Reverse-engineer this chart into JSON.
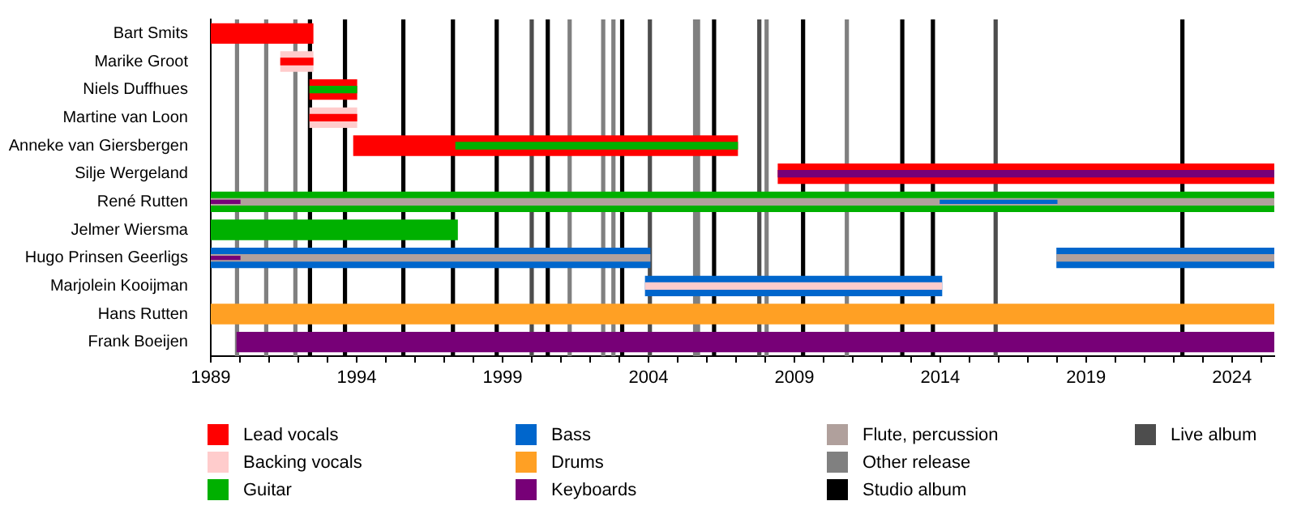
{
  "chart_data": {
    "type": "bar",
    "orientation": "horizontal",
    "categories": [
      "Bart Smits",
      "Marike Groot",
      "Niels Duffhues",
      "Martine van Loon",
      "Anneke van Giersbergen",
      "Silje Wergeland",
      "René Rutten",
      "Jelmer Wiersma",
      "Hugo Prinsen Geerligs",
      "Marjolein Kooijman",
      "Hans Rutten",
      "Frank Boeijen"
    ],
    "series": [
      {
        "name": "Lead vocals",
        "color": "#ff0000",
        "base": [
          1989,
          null,
          1992.4,
          null,
          1993.9,
          2008.45,
          null,
          null,
          null,
          null,
          null,
          null
        ],
        "values": [
          3.5,
          null,
          1.6,
          null,
          13.15,
          17.0,
          null,
          null,
          null,
          null,
          null,
          null
        ]
      },
      {
        "name": "Backing vocals",
        "color": "#ffcccc",
        "base": [
          null,
          1991.4,
          null,
          1992.4,
          null,
          null,
          null,
          null,
          null,
          null,
          null,
          null
        ],
        "values": [
          null,
          1.1,
          null,
          1.6,
          null,
          null,
          null,
          null,
          null,
          null,
          null,
          null
        ]
      },
      {
        "name": "Guitar",
        "color": "#00b000",
        "base": [
          null,
          null,
          null,
          null,
          null,
          null,
          1989,
          1989,
          null,
          null,
          null,
          null
        ],
        "values": [
          null,
          null,
          null,
          null,
          null,
          null,
          36.45,
          8.45,
          null,
          null,
          null,
          null
        ]
      },
      {
        "name": "Bass",
        "color": "#0066cc",
        "base": [
          null,
          null,
          null,
          null,
          null,
          null,
          null,
          null,
          1989,
          2003.9,
          null,
          null
        ],
        "values": [
          null,
          null,
          null,
          null,
          null,
          null,
          null,
          null,
          15.05,
          10.15,
          null,
          null
        ]
      },
      {
        "color": "#0066cc",
        "base": [
          null,
          null,
          null,
          null,
          null,
          null,
          null,
          null,
          2018.0,
          null,
          null,
          null
        ],
        "values": [
          null,
          null,
          null,
          null,
          null,
          null,
          null,
          null,
          7.45,
          null,
          null,
          null
        ]
      },
      {
        "name": "Drums",
        "color": "#ffa024",
        "base": [
          null,
          null,
          null,
          null,
          null,
          null,
          null,
          null,
          null,
          null,
          1989,
          null
        ],
        "values": [
          null,
          null,
          null,
          null,
          null,
          null,
          null,
          null,
          null,
          null,
          36.45,
          null
        ]
      },
      {
        "name": "Keyboards",
        "color": "#770077",
        "base": [
          null,
          null,
          null,
          null,
          null,
          null,
          null,
          null,
          null,
          null,
          null,
          1989.9
        ],
        "values": [
          null,
          null,
          null,
          null,
          null,
          null,
          null,
          null,
          null,
          null,
          null,
          35.55
        ]
      },
      {
        "color": "#ff0000",
        "base": [
          null,
          1991.4,
          null,
          1992.4,
          null,
          null,
          null,
          null,
          null,
          null,
          null,
          null
        ],
        "values": [
          null,
          1.1,
          null,
          1.6,
          null,
          null,
          null,
          null,
          null,
          null,
          null,
          null
        ]
      },
      {
        "color": "#00b000",
        "base": [
          null,
          null,
          1992.4,
          null,
          1997.4,
          null,
          null,
          null,
          null,
          null,
          null,
          null
        ],
        "values": [
          null,
          null,
          1.6,
          null,
          9.65,
          null,
          null,
          null,
          null,
          null,
          null,
          null
        ]
      },
      {
        "color": "#770077",
        "base": [
          null,
          null,
          null,
          null,
          null,
          2008.45,
          null,
          null,
          null,
          null,
          null,
          null
        ],
        "values": [
          null,
          null,
          null,
          null,
          null,
          17.0,
          null,
          null,
          null,
          null,
          null,
          null
        ]
      },
      {
        "name": "Flute, percussion",
        "color": "#b0a09c",
        "base": [
          null,
          null,
          null,
          null,
          null,
          null,
          1989,
          null,
          1989,
          null,
          null,
          null
        ],
        "values": [
          null,
          null,
          null,
          null,
          null,
          null,
          36.45,
          null,
          15.05,
          null,
          null,
          null
        ]
      },
      {
        "color": "#b0a09c",
        "base": [
          null,
          null,
          null,
          null,
          null,
          null,
          null,
          null,
          2018.0,
          null,
          null,
          null
        ],
        "values": [
          null,
          null,
          null,
          null,
          null,
          null,
          null,
          null,
          7.45,
          null,
          null,
          null
        ]
      },
      {
        "color": "#ffcccc",
        "base": [
          null,
          null,
          null,
          null,
          null,
          null,
          null,
          null,
          null,
          2003.9,
          null,
          null
        ],
        "values": [
          null,
          null,
          null,
          null,
          null,
          null,
          null,
          null,
          null,
          10.15,
          null,
          null
        ]
      },
      {
        "color": "#770077",
        "base": [
          null,
          null,
          null,
          null,
          null,
          null,
          1989,
          null,
          1989,
          null,
          null,
          null
        ],
        "values": [
          null,
          null,
          null,
          null,
          null,
          null,
          1.0,
          null,
          1.0,
          null,
          null,
          null
        ]
      },
      {
        "color": "#0066cc",
        "base": [
          null,
          null,
          null,
          null,
          null,
          null,
          2014.0,
          null,
          null,
          null,
          null,
          null
        ],
        "values": [
          null,
          null,
          null,
          null,
          null,
          null,
          4.0,
          null,
          null,
          null,
          null,
          null
        ]
      }
    ],
    "xlim": [
      1989,
      2025.45
    ],
    "xticks": [
      1989,
      {
        "value": 1990,
        "label": null
      },
      {
        "value": 1991,
        "label": null
      },
      {
        "value": 1992,
        "label": null
      },
      {
        "value": 1993,
        "label": null
      },
      1994,
      {
        "value": 1995,
        "label": null
      },
      {
        "value": 1996,
        "label": null
      },
      {
        "value": 1997,
        "label": null
      },
      {
        "value": 1998,
        "label": null
      },
      1999,
      {
        "value": 2000,
        "label": null
      },
      {
        "value": 2001,
        "label": null
      },
      {
        "value": 2002,
        "label": null
      },
      {
        "value": 2003,
        "label": null
      },
      2004,
      {
        "value": 2005,
        "label": null
      },
      {
        "value": 2006,
        "label": null
      },
      {
        "value": 2007,
        "label": null
      },
      {
        "value": 2008,
        "label": null
      },
      2009,
      {
        "value": 2010,
        "label": null
      },
      {
        "value": 2011,
        "label": null
      },
      {
        "value": 2012,
        "label": null
      },
      {
        "value": 2013,
        "label": null
      },
      2014,
      {
        "value": 2015,
        "label": null
      },
      {
        "value": 2016,
        "label": null
      },
      {
        "value": 2017,
        "label": null
      },
      {
        "value": 2018,
        "label": null
      },
      2019,
      {
        "value": 2020,
        "label": null
      },
      {
        "value": 2021,
        "label": null
      },
      {
        "value": 2022,
        "label": null
      },
      {
        "value": 2023,
        "label": null
      },
      2024,
      {
        "value": 2025,
        "label": null
      }
    ],
    "legend": "bottom",
    "ref_lines": [
      {
        "axis": "x",
        "value": 1989.9,
        "label": "Other release",
        "color": "#808080"
      },
      {
        "axis": "x",
        "value": 1990.9,
        "color": "#808080"
      },
      {
        "axis": "x",
        "value": 1991.9,
        "color": "#808080"
      },
      {
        "axis": "x",
        "value": 1992.4,
        "label": "Studio album",
        "color": "#000000"
      },
      {
        "axis": "x",
        "value": 1993.6,
        "color": "#000000"
      },
      {
        "axis": "x",
        "value": 1995.6,
        "color": "#000000"
      },
      {
        "axis": "x",
        "value": 1997.3,
        "color": "#000000"
      },
      {
        "axis": "x",
        "value": 1998.8,
        "color": "#000000"
      },
      {
        "axis": "x",
        "value": 2000.0,
        "label": "Live album",
        "color": "#4d4d4d"
      },
      {
        "axis": "x",
        "value": 2000.55,
        "color": "#000000"
      },
      {
        "axis": "x",
        "value": 2001.3,
        "color": "#808080"
      },
      {
        "axis": "x",
        "value": 2002.45,
        "color": "#808080"
      },
      {
        "axis": "x",
        "value": 2002.8,
        "color": "#808080"
      },
      {
        "axis": "x",
        "value": 2003.1,
        "color": "#000000"
      },
      {
        "axis": "x",
        "value": 2004.05,
        "color": "#4d4d4d"
      },
      {
        "axis": "x",
        "value": 2005.6,
        "color": "#808080"
      },
      {
        "axis": "x",
        "value": 2005.7,
        "color": "#808080"
      },
      {
        "axis": "x",
        "value": 2006.25,
        "color": "#000000"
      },
      {
        "axis": "x",
        "value": 2007.8,
        "color": "#4d4d4d"
      },
      {
        "axis": "x",
        "value": 2008.05,
        "color": "#808080"
      },
      {
        "axis": "x",
        "value": 2009.3,
        "color": "#000000"
      },
      {
        "axis": "x",
        "value": 2010.8,
        "color": "#808080"
      },
      {
        "axis": "x",
        "value": 2012.7,
        "color": "#000000"
      },
      {
        "axis": "x",
        "value": 2013.75,
        "color": "#000000"
      },
      {
        "axis": "x",
        "value": 2015.9,
        "color": "#4d4d4d"
      },
      {
        "axis": "x",
        "value": 2022.3,
        "color": "#000000"
      }
    ]
  }
}
